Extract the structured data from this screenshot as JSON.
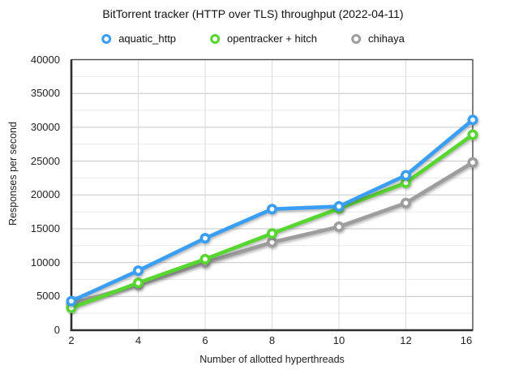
{
  "chart_data": {
    "type": "line",
    "title": "BitTorrent tracker (HTTP over TLS) throughput (2022-04-11)",
    "xlabel": "Number of allotted hyperthreads",
    "ylabel": "Responses per second",
    "categories": [
      2,
      4,
      6,
      8,
      10,
      12,
      16
    ],
    "y_ticks": [
      0,
      5000,
      10000,
      15000,
      20000,
      25000,
      30000,
      35000,
      40000
    ],
    "ylim": [
      0,
      40000
    ],
    "y_minor_step": 2500,
    "grid": true,
    "legend_position": "top",
    "frame_color": "#4a4a4a",
    "major_grid_color": "#c6c6c6",
    "minor_grid_color": "#e9e9e9",
    "vertical_grid_color": "#dadada",
    "series": [
      {
        "name": "aquatic_http",
        "color": "#3b9ef5",
        "values": [
          4300,
          8800,
          13600,
          17900,
          18300,
          22900,
          31100
        ]
      },
      {
        "name": "opentracker + hitch",
        "color": "#57d62f",
        "values": [
          3300,
          7000,
          10500,
          14300,
          18000,
          21800,
          28900
        ]
      },
      {
        "name": "chihaya",
        "color": "#9d9d9d",
        "values": [
          3900,
          6700,
          10000,
          13000,
          15300,
          18800,
          24800
        ]
      }
    ]
  }
}
